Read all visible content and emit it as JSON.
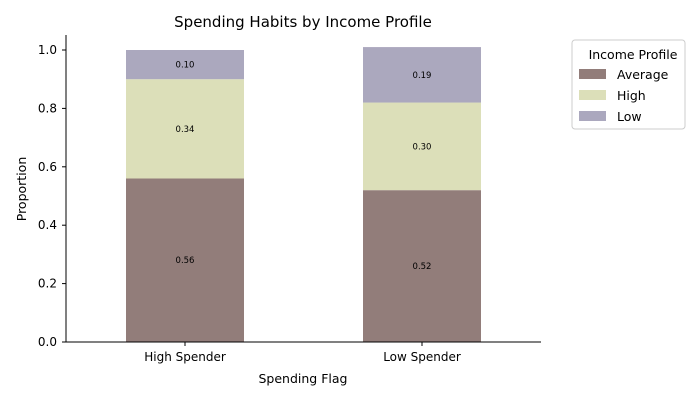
{
  "chart_data": {
    "type": "bar",
    "stacked": true,
    "title": "Spending Habits by Income Profile",
    "xlabel": "Spending Flag",
    "ylabel": "Proportion",
    "categories": [
      "High Spender",
      "Low Spender"
    ],
    "ylim": [
      0,
      1.05
    ],
    "yticks": [
      "0.0",
      "0.2",
      "0.4",
      "0.6",
      "0.8",
      "1.0"
    ],
    "series": [
      {
        "name": "Average",
        "values": [
          0.56,
          0.52
        ],
        "labels": [
          "0.56",
          "0.52"
        ],
        "color": "#927d7a"
      },
      {
        "name": "High",
        "values": [
          0.34,
          0.3
        ],
        "labels": [
          "0.34",
          "0.30"
        ],
        "color": "#dcdfb9"
      },
      {
        "name": "Low",
        "values": [
          0.1,
          0.19
        ],
        "labels": [
          "0.10",
          "0.19"
        ],
        "color": "#aba8be"
      }
    ],
    "legend": {
      "title": "Income Profile",
      "position": "outside-right"
    },
    "grid": false
  }
}
